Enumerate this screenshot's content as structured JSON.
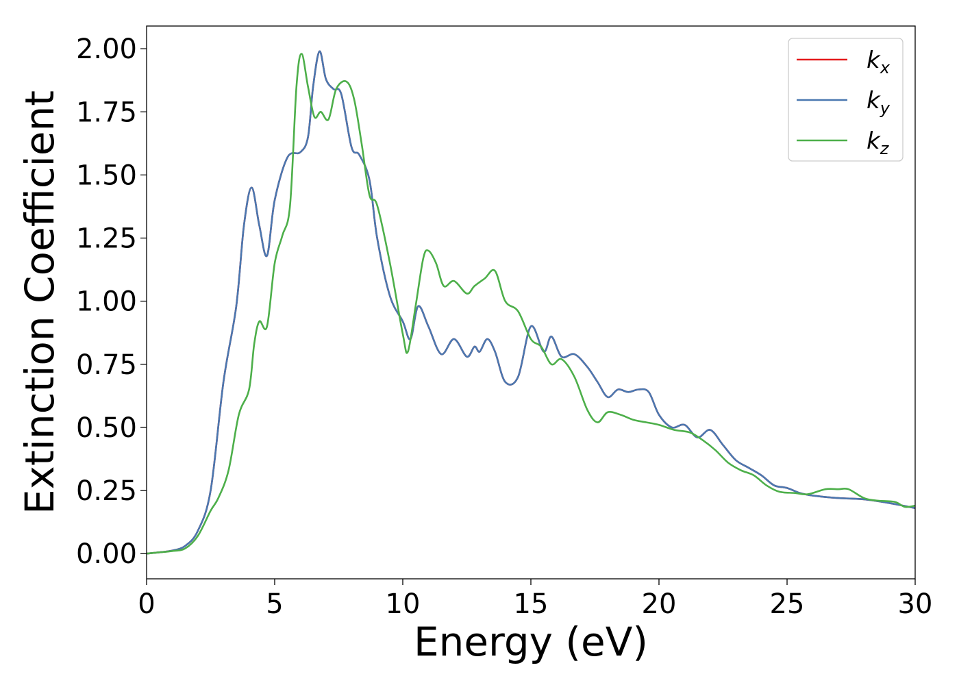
{
  "chart_data": {
    "type": "line",
    "xlabel": "Energy (eV)",
    "ylabel": "Extinction Coefficient",
    "xlim": [
      0,
      30
    ],
    "ylim": [
      -0.1,
      2.09
    ],
    "xticks": [
      0,
      5,
      10,
      15,
      20,
      25,
      30
    ],
    "xtick_labels": [
      "0",
      "5",
      "10",
      "15",
      "20",
      "25",
      "30"
    ],
    "yticks": [
      0.0,
      0.25,
      0.5,
      0.75,
      1.0,
      1.25,
      1.5,
      1.75,
      2.0
    ],
    "ytick_labels": [
      "0.00",
      "0.25",
      "0.50",
      "0.75",
      "1.00",
      "1.25",
      "1.50",
      "1.75",
      "2.00"
    ],
    "grid": false,
    "legend_position": "top-right",
    "series": [
      {
        "name": "k",
        "sub": "x",
        "color": "#e41a1c",
        "points": [
          [
            0,
            0
          ],
          [
            0.5,
            0.005
          ],
          [
            1,
            0.012
          ],
          [
            1.5,
            0.03
          ],
          [
            2,
            0.09
          ],
          [
            2.5,
            0.25
          ],
          [
            3,
            0.68
          ],
          [
            3.5,
            0.98
          ],
          [
            3.8,
            1.3
          ],
          [
            4.1,
            1.45
          ],
          [
            4.4,
            1.3
          ],
          [
            4.7,
            1.18
          ],
          [
            5,
            1.4
          ],
          [
            5.5,
            1.57
          ],
          [
            6,
            1.59
          ],
          [
            6.3,
            1.65
          ],
          [
            6.5,
            1.85
          ],
          [
            6.75,
            1.99
          ],
          [
            7,
            1.88
          ],
          [
            7.3,
            1.84
          ],
          [
            7.6,
            1.82
          ],
          [
            8,
            1.61
          ],
          [
            8.3,
            1.58
          ],
          [
            8.7,
            1.48
          ],
          [
            9,
            1.25
          ],
          [
            9.5,
            1.02
          ],
          [
            10,
            0.92
          ],
          [
            10.3,
            0.85
          ],
          [
            10.6,
            0.98
          ],
          [
            11,
            0.9
          ],
          [
            11.5,
            0.79
          ],
          [
            12,
            0.85
          ],
          [
            12.5,
            0.78
          ],
          [
            12.8,
            0.82
          ],
          [
            13,
            0.8
          ],
          [
            13.3,
            0.85
          ],
          [
            13.6,
            0.8
          ],
          [
            14,
            0.68
          ],
          [
            14.5,
            0.7
          ],
          [
            15,
            0.9
          ],
          [
            15.5,
            0.8
          ],
          [
            15.8,
            0.86
          ],
          [
            16.2,
            0.78
          ],
          [
            16.7,
            0.79
          ],
          [
            17.2,
            0.74
          ],
          [
            17.6,
            0.68
          ],
          [
            18,
            0.62
          ],
          [
            18.4,
            0.65
          ],
          [
            18.8,
            0.64
          ],
          [
            19.2,
            0.65
          ],
          [
            19.6,
            0.64
          ],
          [
            20,
            0.55
          ],
          [
            20.5,
            0.5
          ],
          [
            21,
            0.51
          ],
          [
            21.5,
            0.46
          ],
          [
            22,
            0.49
          ],
          [
            22.5,
            0.43
          ],
          [
            23,
            0.37
          ],
          [
            23.5,
            0.34
          ],
          [
            24,
            0.31
          ],
          [
            24.5,
            0.27
          ],
          [
            25,
            0.26
          ],
          [
            25.5,
            0.24
          ],
          [
            26,
            0.23
          ],
          [
            27,
            0.22
          ],
          [
            28,
            0.215
          ],
          [
            29,
            0.2
          ],
          [
            30,
            0.18
          ]
        ]
      },
      {
        "name": "k",
        "sub": "y",
        "color": "#4a78b0",
        "points": [
          [
            0,
            0
          ],
          [
            0.5,
            0.005
          ],
          [
            1,
            0.012
          ],
          [
            1.5,
            0.03
          ],
          [
            2,
            0.09
          ],
          [
            2.5,
            0.25
          ],
          [
            3,
            0.68
          ],
          [
            3.5,
            0.98
          ],
          [
            3.8,
            1.3
          ],
          [
            4.1,
            1.45
          ],
          [
            4.4,
            1.3
          ],
          [
            4.7,
            1.18
          ],
          [
            5,
            1.4
          ],
          [
            5.5,
            1.57
          ],
          [
            6,
            1.59
          ],
          [
            6.3,
            1.65
          ],
          [
            6.5,
            1.85
          ],
          [
            6.75,
            1.99
          ],
          [
            7,
            1.88
          ],
          [
            7.3,
            1.84
          ],
          [
            7.6,
            1.82
          ],
          [
            8,
            1.61
          ],
          [
            8.3,
            1.58
          ],
          [
            8.7,
            1.48
          ],
          [
            9,
            1.25
          ],
          [
            9.5,
            1.02
          ],
          [
            10,
            0.92
          ],
          [
            10.3,
            0.85
          ],
          [
            10.6,
            0.98
          ],
          [
            11,
            0.9
          ],
          [
            11.5,
            0.79
          ],
          [
            12,
            0.85
          ],
          [
            12.5,
            0.78
          ],
          [
            12.8,
            0.82
          ],
          [
            13,
            0.8
          ],
          [
            13.3,
            0.85
          ],
          [
            13.6,
            0.8
          ],
          [
            14,
            0.68
          ],
          [
            14.5,
            0.7
          ],
          [
            15,
            0.9
          ],
          [
            15.5,
            0.8
          ],
          [
            15.8,
            0.86
          ],
          [
            16.2,
            0.78
          ],
          [
            16.7,
            0.79
          ],
          [
            17.2,
            0.74
          ],
          [
            17.6,
            0.68
          ],
          [
            18,
            0.62
          ],
          [
            18.4,
            0.65
          ],
          [
            18.8,
            0.64
          ],
          [
            19.2,
            0.65
          ],
          [
            19.6,
            0.64
          ],
          [
            20,
            0.55
          ],
          [
            20.5,
            0.5
          ],
          [
            21,
            0.51
          ],
          [
            21.5,
            0.46
          ],
          [
            22,
            0.49
          ],
          [
            22.5,
            0.43
          ],
          [
            23,
            0.37
          ],
          [
            23.5,
            0.34
          ],
          [
            24,
            0.31
          ],
          [
            24.5,
            0.27
          ],
          [
            25,
            0.26
          ],
          [
            25.5,
            0.24
          ],
          [
            26,
            0.23
          ],
          [
            27,
            0.22
          ],
          [
            28,
            0.215
          ],
          [
            29,
            0.2
          ],
          [
            30,
            0.18
          ]
        ]
      },
      {
        "name": "k",
        "sub": "z",
        "color": "#4daf4a",
        "points": [
          [
            0,
            0
          ],
          [
            0.5,
            0.005
          ],
          [
            1,
            0.01
          ],
          [
            1.5,
            0.02
          ],
          [
            2,
            0.07
          ],
          [
            2.5,
            0.17
          ],
          [
            2.8,
            0.22
          ],
          [
            3.2,
            0.33
          ],
          [
            3.6,
            0.55
          ],
          [
            4,
            0.65
          ],
          [
            4.2,
            0.83
          ],
          [
            4.4,
            0.92
          ],
          [
            4.7,
            0.9
          ],
          [
            5,
            1.15
          ],
          [
            5.3,
            1.26
          ],
          [
            5.6,
            1.38
          ],
          [
            5.85,
            1.85
          ],
          [
            6.05,
            1.98
          ],
          [
            6.3,
            1.85
          ],
          [
            6.55,
            1.73
          ],
          [
            6.8,
            1.75
          ],
          [
            7.1,
            1.72
          ],
          [
            7.4,
            1.84
          ],
          [
            7.8,
            1.87
          ],
          [
            8.1,
            1.8
          ],
          [
            8.4,
            1.62
          ],
          [
            8.7,
            1.42
          ],
          [
            9,
            1.38
          ],
          [
            9.5,
            1.15
          ],
          [
            10,
            0.87
          ],
          [
            10.2,
            0.8
          ],
          [
            10.5,
            0.98
          ],
          [
            10.8,
            1.17
          ],
          [
            11,
            1.2
          ],
          [
            11.3,
            1.15
          ],
          [
            11.6,
            1.06
          ],
          [
            12,
            1.08
          ],
          [
            12.5,
            1.03
          ],
          [
            12.8,
            1.06
          ],
          [
            13.2,
            1.09
          ],
          [
            13.6,
            1.12
          ],
          [
            14,
            1.0
          ],
          [
            14.5,
            0.96
          ],
          [
            15,
            0.85
          ],
          [
            15.4,
            0.82
          ],
          [
            15.8,
            0.75
          ],
          [
            16.2,
            0.77
          ],
          [
            16.7,
            0.7
          ],
          [
            17.2,
            0.57
          ],
          [
            17.6,
            0.52
          ],
          [
            18,
            0.56
          ],
          [
            18.5,
            0.55
          ],
          [
            19,
            0.53
          ],
          [
            19.5,
            0.52
          ],
          [
            20,
            0.51
          ],
          [
            20.6,
            0.49
          ],
          [
            21.2,
            0.48
          ],
          [
            21.7,
            0.45
          ],
          [
            22.2,
            0.41
          ],
          [
            22.7,
            0.36
          ],
          [
            23.2,
            0.33
          ],
          [
            23.7,
            0.31
          ],
          [
            24.2,
            0.27
          ],
          [
            24.7,
            0.245
          ],
          [
            25.3,
            0.24
          ],
          [
            25.8,
            0.235
          ],
          [
            26.5,
            0.255
          ],
          [
            27,
            0.255
          ],
          [
            27.4,
            0.255
          ],
          [
            28,
            0.22
          ],
          [
            28.5,
            0.21
          ],
          [
            29.2,
            0.205
          ],
          [
            29.6,
            0.185
          ],
          [
            30,
            0.19
          ]
        ]
      }
    ]
  }
}
